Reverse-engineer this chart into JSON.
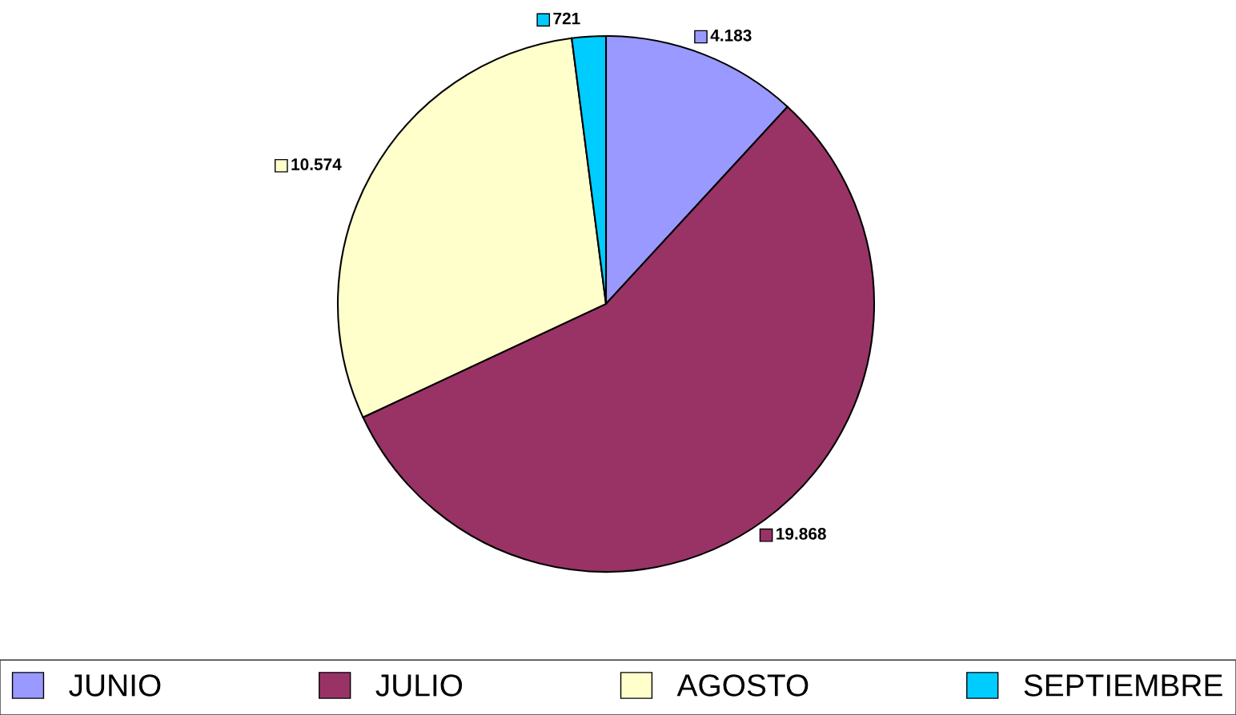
{
  "chart_data": {
    "type": "pie",
    "categories": [
      "JUNIO",
      "JULIO",
      "AGOSTO",
      "SEPTIEMBRE"
    ],
    "values": [
      4183,
      19868,
      10574,
      721
    ],
    "value_labels": [
      "4.183",
      "19.868",
      "10.574",
      "721"
    ],
    "colors": [
      "#9999ff",
      "#993366",
      "#ffffcc",
      "#00ccff"
    ],
    "legend": "bottom"
  }
}
